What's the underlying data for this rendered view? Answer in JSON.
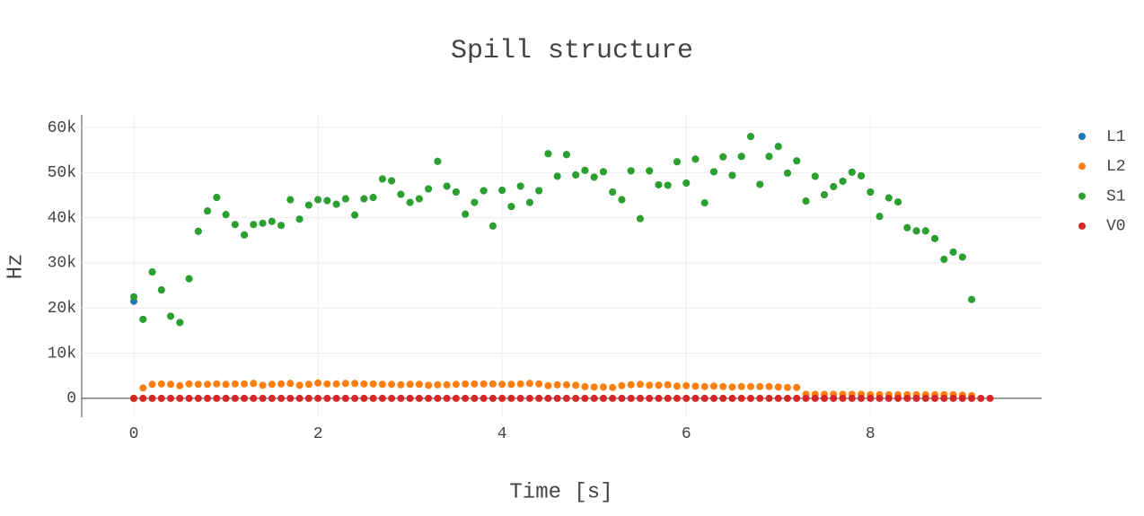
{
  "chart_data": {
    "type": "scatter",
    "title": "Spill structure",
    "x_label": "Time [s]",
    "y_label": "Hz",
    "xlim": [
      -0.566,
      9.86
    ],
    "ylim": [
      -4200,
      62800
    ],
    "xticks": [
      0,
      2,
      4,
      6,
      8
    ],
    "yticks": [
      0,
      {
        "value": 10000,
        "label": "10k"
      },
      {
        "value": 20000,
        "label": "20k"
      },
      {
        "value": 30000,
        "label": "30k"
      },
      {
        "value": 40000,
        "label": "40k"
      },
      {
        "value": 50000,
        "label": "50k"
      },
      {
        "value": 60000,
        "label": "60k"
      }
    ],
    "grid": true,
    "legend": "right",
    "series": [
      {
        "name": "L1",
        "color": "#1f77b4",
        "x": [
          0,
          0.1,
          0.2,
          0.3,
          0.4,
          0.5,
          0.6,
          0.7,
          0.8,
          0.9,
          1,
          1.1,
          1.2,
          1.3,
          1.4,
          1.5,
          1.6,
          1.7,
          1.8,
          1.9,
          2,
          2.1,
          2.2,
          2.3,
          2.4,
          2.5,
          2.6,
          2.7,
          2.8,
          2.9,
          3,
          3.1,
          3.2,
          3.3,
          3.4,
          3.5,
          3.6,
          3.7,
          3.8,
          3.9,
          4,
          4.1,
          4.2,
          4.3,
          4.4,
          4.5,
          4.6,
          4.7,
          4.8,
          4.9,
          5,
          5.1,
          5.2,
          5.3,
          5.4,
          5.5,
          5.6,
          5.7,
          5.8,
          5.9,
          6,
          6.1,
          6.2,
          6.3,
          6.4,
          6.5,
          6.6,
          6.7,
          6.8,
          6.9,
          7,
          7.1,
          7.2,
          7.3,
          7.4,
          7.5,
          7.6,
          7.7,
          7.8,
          7.9,
          8,
          8.1,
          8.2,
          8.3,
          8.4,
          8.5,
          8.6,
          8.7,
          8.8,
          8.9,
          9,
          9.1
        ],
        "values": [
          21500,
          17500,
          28000,
          24000,
          18200,
          16800,
          26500,
          37000,
          41500,
          44500,
          40700,
          38500,
          36200,
          38500,
          38800,
          39200,
          38300,
          44000,
          39700,
          42800,
          44000,
          43800,
          43000,
          44200,
          40600,
          44200,
          44500,
          48600,
          48200,
          45200,
          43400,
          44200,
          46400,
          52500,
          47000,
          45700,
          40800,
          43400,
          46000,
          38200,
          46100,
          42500,
          47000,
          43400,
          46000,
          54200,
          49200,
          54000,
          49500,
          50500,
          49000,
          50200,
          45700,
          44000,
          50400,
          39800,
          50400,
          47300,
          47200,
          52400,
          47700,
          53000,
          43300,
          50200,
          53500,
          49400,
          53600,
          58000,
          47400,
          53600,
          55800,
          49900,
          52600,
          43700,
          49200,
          45100,
          46900,
          48100,
          50100,
          49300,
          45700,
          40300,
          44400,
          43500,
          37800,
          37100,
          37100,
          35400,
          30800,
          32400,
          31300,
          21900
        ]
      },
      {
        "name": "L2",
        "color": "#ff7f0e",
        "x": [
          0,
          0.1,
          0.2,
          0.3,
          0.4,
          0.5,
          0.6,
          0.7,
          0.8,
          0.9,
          1,
          1.1,
          1.2,
          1.3,
          1.4,
          1.5,
          1.6,
          1.7,
          1.8,
          1.9,
          2,
          2.1,
          2.2,
          2.3,
          2.4,
          2.5,
          2.6,
          2.7,
          2.8,
          2.9,
          3,
          3.1,
          3.2,
          3.3,
          3.4,
          3.5,
          3.6,
          3.7,
          3.8,
          3.9,
          4,
          4.1,
          4.2,
          4.3,
          4.4,
          4.5,
          4.6,
          4.7,
          4.8,
          4.9,
          5,
          5.1,
          5.2,
          5.3,
          5.4,
          5.5,
          5.6,
          5.7,
          5.8,
          5.9,
          6,
          6.1,
          6.2,
          6.3,
          6.4,
          6.5,
          6.6,
          6.7,
          6.8,
          6.9,
          7,
          7.1,
          7.2,
          7.3,
          7.4,
          7.5,
          7.6,
          7.7,
          7.8,
          7.9,
          8,
          8.1,
          8.2,
          8.3,
          8.4,
          8.5,
          8.6,
          8.7,
          8.8,
          8.9,
          9,
          9.1
        ],
        "values": [
          0,
          2300,
          3100,
          3200,
          3100,
          2800,
          3200,
          3100,
          3100,
          3200,
          3100,
          3200,
          3200,
          3300,
          2900,
          3100,
          3200,
          3300,
          2900,
          3100,
          3400,
          3200,
          3200,
          3300,
          3300,
          3200,
          3200,
          3100,
          3100,
          3000,
          3100,
          3100,
          2900,
          3000,
          3000,
          3100,
          3200,
          3200,
          3200,
          3200,
          3100,
          3100,
          3200,
          3300,
          3200,
          2800,
          3000,
          3000,
          2900,
          2600,
          2500,
          2500,
          2400,
          2800,
          3000,
          3100,
          2900,
          2900,
          3000,
          2700,
          2800,
          2700,
          2600,
          2700,
          2600,
          2500,
          2600,
          2600,
          2600,
          2600,
          2500,
          2400,
          2400,
          900,
          900,
          900,
          900,
          900,
          900,
          900,
          800,
          800,
          800,
          800,
          800,
          800,
          800,
          800,
          800,
          800,
          700,
          600
        ]
      },
      {
        "name": "S1",
        "color": "#2ca02c",
        "x": [
          0,
          0.1,
          0.2,
          0.3,
          0.4,
          0.5,
          0.6,
          0.7,
          0.8,
          0.9,
          1,
          1.1,
          1.2,
          1.3,
          1.4,
          1.5,
          1.6,
          1.7,
          1.8,
          1.9,
          2,
          2.1,
          2.2,
          2.3,
          2.4,
          2.5,
          2.6,
          2.7,
          2.8,
          2.9,
          3,
          3.1,
          3.2,
          3.3,
          3.4,
          3.5,
          3.6,
          3.7,
          3.8,
          3.9,
          4,
          4.1,
          4.2,
          4.3,
          4.4,
          4.5,
          4.6,
          4.7,
          4.8,
          4.9,
          5,
          5.1,
          5.2,
          5.3,
          5.4,
          5.5,
          5.6,
          5.7,
          5.8,
          5.9,
          6,
          6.1,
          6.2,
          6.3,
          6.4,
          6.5,
          6.6,
          6.7,
          6.8,
          6.9,
          7,
          7.1,
          7.2,
          7.3,
          7.4,
          7.5,
          7.6,
          7.7,
          7.8,
          7.9,
          8,
          8.1,
          8.2,
          8.3,
          8.4,
          8.5,
          8.6,
          8.7,
          8.8,
          8.9,
          9,
          9.1
        ],
        "values": [
          22500,
          17500,
          28000,
          24000,
          18200,
          16800,
          26500,
          37000,
          41500,
          44500,
          40700,
          38500,
          36200,
          38500,
          38800,
          39200,
          38300,
          44000,
          39700,
          42800,
          44000,
          43800,
          43000,
          44200,
          40600,
          44200,
          44500,
          48600,
          48200,
          45200,
          43400,
          44200,
          46400,
          52500,
          47000,
          45700,
          40800,
          43400,
          46000,
          38200,
          46100,
          42500,
          47000,
          43400,
          46000,
          54200,
          49200,
          54000,
          49500,
          50500,
          49000,
          50200,
          45700,
          44000,
          50400,
          39800,
          50400,
          47300,
          47200,
          52400,
          47700,
          53000,
          43300,
          50200,
          53500,
          49400,
          53600,
          58000,
          47400,
          53600,
          55800,
          49900,
          52600,
          43700,
          49200,
          45100,
          46900,
          48100,
          50100,
          49300,
          45700,
          40300,
          44400,
          43500,
          37800,
          37100,
          37100,
          35400,
          30800,
          32400,
          31300,
          21900
        ]
      },
      {
        "name": "V0",
        "color": "#d62728",
        "x": [
          0,
          0.1,
          0.2,
          0.3,
          0.4,
          0.5,
          0.6,
          0.7,
          0.8,
          0.9,
          1,
          1.1,
          1.2,
          1.3,
          1.4,
          1.5,
          1.6,
          1.7,
          1.8,
          1.9,
          2,
          2.1,
          2.2,
          2.3,
          2.4,
          2.5,
          2.6,
          2.7,
          2.8,
          2.9,
          3,
          3.1,
          3.2,
          3.3,
          3.4,
          3.5,
          3.6,
          3.7,
          3.8,
          3.9,
          4,
          4.1,
          4.2,
          4.3,
          4.4,
          4.5,
          4.6,
          4.7,
          4.8,
          4.9,
          5,
          5.1,
          5.2,
          5.3,
          5.4,
          5.5,
          5.6,
          5.7,
          5.8,
          5.9,
          6,
          6.1,
          6.2,
          6.3,
          6.4,
          6.5,
          6.6,
          6.7,
          6.8,
          6.9,
          7,
          7.1,
          7.2,
          7.3,
          7.4,
          7.5,
          7.6,
          7.7,
          7.8,
          7.9,
          8,
          8.1,
          8.2,
          8.3,
          8.4,
          8.5,
          8.6,
          8.7,
          8.8,
          8.9,
          9,
          9.1,
          9.2,
          9.3
        ],
        "values": [
          0,
          0,
          0,
          0,
          0,
          0,
          0,
          0,
          0,
          0,
          0,
          0,
          0,
          0,
          0,
          0,
          0,
          0,
          0,
          0,
          0,
          0,
          0,
          0,
          0,
          0,
          0,
          0,
          0,
          0,
          0,
          0,
          0,
          0,
          0,
          0,
          0,
          0,
          0,
          0,
          0,
          0,
          0,
          0,
          0,
          0,
          0,
          0,
          0,
          0,
          0,
          0,
          0,
          0,
          0,
          0,
          0,
          0,
          0,
          0,
          0,
          0,
          0,
          0,
          0,
          0,
          0,
          0,
          0,
          0,
          0,
          0,
          0,
          0,
          0,
          0,
          0,
          0,
          0,
          0,
          0,
          0,
          0,
          0,
          0,
          0,
          0,
          0,
          0,
          0,
          0,
          0,
          0,
          0
        ]
      }
    ]
  }
}
